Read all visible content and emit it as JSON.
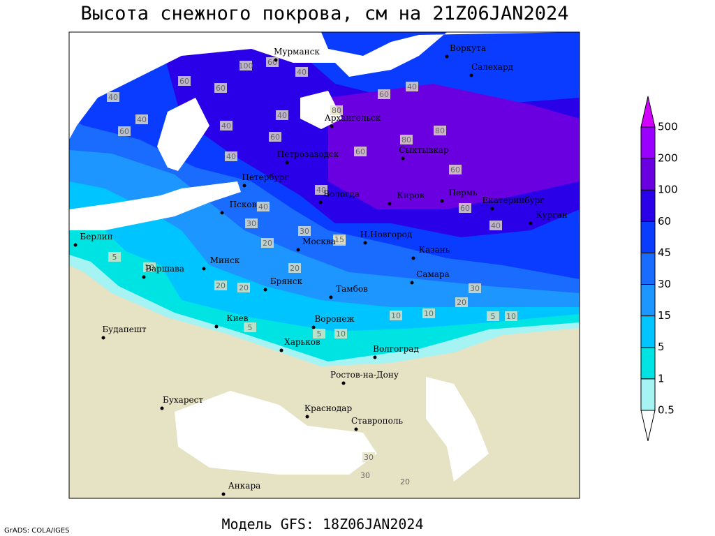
{
  "header": {
    "title": "Высота снежного покрова, см на 21Z06JAN2024"
  },
  "footer": {
    "model": "Модель GFS: 18Z06JAN2024",
    "credit": "GrADS: COLA/IGES"
  },
  "legend": {
    "levels": [
      0.5,
      1,
      5,
      15,
      30,
      45,
      60,
      100,
      200,
      500
    ],
    "colors": [
      "#ffffff",
      "#a6f3f3",
      "#00e3e3",
      "#00c4ff",
      "#1e96ff",
      "#1a6cff",
      "#0a3cff",
      "#2a00e8",
      "#6a00e0",
      "#9a00ff",
      "#d200ff"
    ]
  },
  "cities": [
    "Мурманск",
    "Воркута",
    "Салехард",
    "Архангельск",
    "Петрозаводск",
    "Сыктывкар",
    "Петербург",
    "Вологда",
    "Киров",
    "Пермь",
    "Екатеринбург",
    "Курган",
    "Псков",
    "Берлин",
    "Н.Новгород",
    "Москва",
    "Казань",
    "Минск",
    "Варшава",
    "Брянск",
    "Самара",
    "Тамбов",
    "Киев",
    "Воронеж",
    "Будапешт",
    "Харьков",
    "Волгоград",
    "Ростов-на-Дону",
    "Бухарест",
    "Краснодар",
    "Ставрополь",
    "Анкара"
  ],
  "contour_labels": [
    100,
    60,
    40,
    60,
    40,
    40,
    60,
    60,
    40,
    40,
    80,
    60,
    80,
    60,
    60,
    40,
    80,
    40,
    60,
    40,
    40,
    30,
    40,
    20,
    20,
    30,
    20,
    5,
    10,
    20,
    10,
    5,
    10,
    5,
    10,
    20,
    30,
    5,
    10,
    30,
    30,
    20,
    15,
    40,
    60
  ]
}
